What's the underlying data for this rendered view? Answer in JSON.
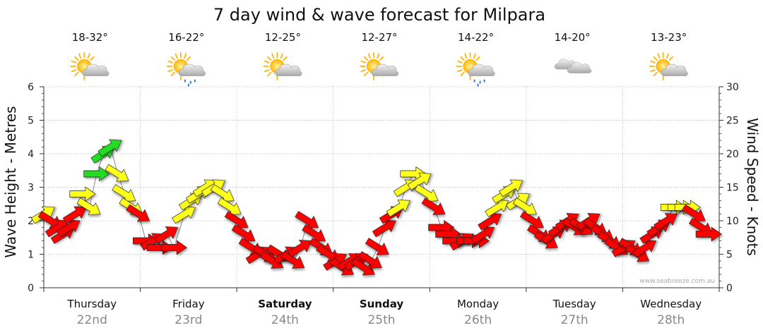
{
  "title": "7 day wind & wave forecast for Milpara",
  "credit": "www.seabreeze.com.au",
  "colors": {
    "red": "#ff0000",
    "yellow": "#ffff1a",
    "green": "#22dd22",
    "wave_line": "#555555"
  },
  "days": [
    {
      "name": "Thursday",
      "date": "22nd",
      "temp": "18-32°",
      "icon": "sun-cloud-icon",
      "bold": false
    },
    {
      "name": "Friday",
      "date": "23rd",
      "temp": "16-22°",
      "icon": "sun-cloud-rain-icon",
      "bold": false
    },
    {
      "name": "Saturday",
      "date": "24th",
      "temp": "12-25°",
      "icon": "sun-cloud-icon",
      "bold": true
    },
    {
      "name": "Sunday",
      "date": "25th",
      "temp": "12-27°",
      "icon": "sun-cloud-icon",
      "bold": true
    },
    {
      "name": "Monday",
      "date": "26th",
      "temp": "14-22°",
      "icon": "sun-cloud-rain-icon",
      "bold": false
    },
    {
      "name": "Tuesday",
      "date": "27th",
      "temp": "14-20°",
      "icon": "cloud-icon",
      "bold": false
    },
    {
      "name": "Wednesday",
      "date": "28th",
      "temp": "13-23°",
      "icon": "sun-cloud-icon",
      "bold": false
    }
  ],
  "chart_data": {
    "type": "line",
    "title": "7 day wind & wave forecast for Milpara",
    "y_left": {
      "label": "Wave Height - Metres",
      "min": 0,
      "max": 6,
      "ticks": [
        0,
        1,
        2,
        3,
        4,
        5,
        6
      ]
    },
    "y_right": {
      "label": "Wind Speed - Knots",
      "min": 0,
      "max": 30,
      "ticks": [
        0,
        5,
        10,
        15,
        20,
        25,
        30
      ]
    },
    "x": {
      "days": 7,
      "categories": [
        "Thursday 22nd",
        "Friday 23rd",
        "Saturday 24th",
        "Sunday 25th",
        "Monday 26th",
        "Tuesday 27th",
        "Wednesday 28th"
      ]
    },
    "grid": true,
    "wind_arrows": [
      {
        "t": 0.0,
        "speed": 11,
        "dir": "NE",
        "color": "yellow"
      },
      {
        "t": 0.1,
        "speed": 10,
        "dir": "SE",
        "color": "red"
      },
      {
        "t": 0.2,
        "speed": 9,
        "dir": "NE",
        "color": "red"
      },
      {
        "t": 0.28,
        "speed": 8,
        "dir": "NE",
        "color": "red"
      },
      {
        "t": 0.36,
        "speed": 9,
        "dir": "NE",
        "color": "red"
      },
      {
        "t": 0.45,
        "speed": 11,
        "dir": "NE",
        "color": "red"
      },
      {
        "t": 0.55,
        "speed": 14,
        "dir": "E",
        "color": "yellow"
      },
      {
        "t": 0.65,
        "speed": 12,
        "dir": "SE",
        "color": "yellow"
      },
      {
        "t": 0.75,
        "speed": 17,
        "dir": "E",
        "color": "green"
      },
      {
        "t": 0.85,
        "speed": 20,
        "dir": "NE",
        "color": "green"
      },
      {
        "t": 0.95,
        "speed": 21,
        "dir": "NE",
        "color": "green"
      },
      {
        "t": 1.05,
        "speed": 17,
        "dir": "SE",
        "color": "yellow"
      },
      {
        "t": 1.15,
        "speed": 14,
        "dir": "SE",
        "color": "yellow"
      },
      {
        "t": 1.25,
        "speed": 12,
        "dir": "SE",
        "color": "yellow"
      },
      {
        "t": 1.35,
        "speed": 11,
        "dir": "SE",
        "color": "red"
      },
      {
        "t": 1.45,
        "speed": 7,
        "dir": "E",
        "color": "red"
      },
      {
        "t": 1.55,
        "speed": 7,
        "dir": "NE",
        "color": "red"
      },
      {
        "t": 1.65,
        "speed": 6,
        "dir": "E",
        "color": "red"
      },
      {
        "t": 1.75,
        "speed": 8,
        "dir": "NE",
        "color": "red"
      },
      {
        "t": 1.85,
        "speed": 6,
        "dir": "E",
        "color": "red"
      },
      {
        "t": 2.0,
        "speed": 11,
        "dir": "NE",
        "color": "yellow"
      },
      {
        "t": 2.1,
        "speed": 13,
        "dir": "NE",
        "color": "yellow"
      },
      {
        "t": 2.2,
        "speed": 14,
        "dir": "NE",
        "color": "yellow"
      },
      {
        "t": 2.3,
        "speed": 15,
        "dir": "NE",
        "color": "yellow"
      },
      {
        "t": 2.42,
        "speed": 15,
        "dir": "NE",
        "color": "yellow"
      },
      {
        "t": 2.55,
        "speed": 14,
        "dir": "SE",
        "color": "yellow"
      },
      {
        "t": 2.65,
        "speed": 12,
        "dir": "SE",
        "color": "yellow"
      },
      {
        "t": 2.75,
        "speed": 10,
        "dir": "SE",
        "color": "red"
      },
      {
        "t": 2.85,
        "speed": 8,
        "dir": "SE",
        "color": "red"
      },
      {
        "t": 2.95,
        "speed": 6,
        "dir": "SE",
        "color": "red"
      },
      {
        "t": 3.05,
        "speed": 5,
        "dir": "NE",
        "color": "red"
      },
      {
        "t": 3.15,
        "speed": 5,
        "dir": "SE",
        "color": "red"
      },
      {
        "t": 3.25,
        "speed": 4,
        "dir": "SE",
        "color": "red"
      },
      {
        "t": 3.35,
        "speed": 5,
        "dir": "SE",
        "color": "red"
      },
      {
        "t": 3.45,
        "speed": 5,
        "dir": "NE",
        "color": "red"
      },
      {
        "t": 3.55,
        "speed": 4,
        "dir": "SE",
        "color": "red"
      },
      {
        "t": 3.65,
        "speed": 6,
        "dir": "NE",
        "color": "red"
      },
      {
        "t": 3.75,
        "speed": 10,
        "dir": "SE",
        "color": "red"
      },
      {
        "t": 3.85,
        "speed": 8,
        "dir": "SE",
        "color": "red"
      },
      {
        "t": 3.95,
        "speed": 6,
        "dir": "SE",
        "color": "red"
      },
      {
        "t": 4.05,
        "speed": 5,
        "dir": "SE",
        "color": "red"
      },
      {
        "t": 4.15,
        "speed": 4,
        "dir": "NE",
        "color": "red"
      },
      {
        "t": 4.25,
        "speed": 3,
        "dir": "SE",
        "color": "red"
      },
      {
        "t": 4.35,
        "speed": 4,
        "dir": "NE",
        "color": "red"
      },
      {
        "t": 4.45,
        "speed": 4,
        "dir": "NE",
        "color": "red"
      },
      {
        "t": 4.55,
        "speed": 3,
        "dir": "SE",
        "color": "red"
      },
      {
        "t": 4.65,
        "speed": 4,
        "dir": "SE",
        "color": "red"
      },
      {
        "t": 4.75,
        "speed": 6,
        "dir": "SE",
        "color": "red"
      },
      {
        "t": 4.85,
        "speed": 9,
        "dir": "NE",
        "color": "red"
      },
      {
        "t": 4.95,
        "speed": 11,
        "dir": "NE",
        "color": "red"
      },
      {
        "t": 5.05,
        "speed": 12,
        "dir": "NE",
        "color": "yellow"
      },
      {
        "t": 5.15,
        "speed": 15,
        "dir": "NE",
        "color": "yellow"
      },
      {
        "t": 5.25,
        "speed": 17,
        "dir": "E",
        "color": "yellow"
      },
      {
        "t": 5.35,
        "speed": 16,
        "dir": "NE",
        "color": "yellow"
      },
      {
        "t": 5.45,
        "speed": 14,
        "dir": "SE",
        "color": "yellow"
      },
      {
        "t": 5.55,
        "speed": 12,
        "dir": "SE",
        "color": "red"
      },
      {
        "t": 5.65,
        "speed": 9,
        "dir": "E",
        "color": "red"
      },
      {
        "t": 5.75,
        "speed": 8,
        "dir": "E",
        "color": "red"
      },
      {
        "t": 5.85,
        "speed": 7,
        "dir": "E",
        "color": "red"
      },
      {
        "t": 5.95,
        "speed": 7,
        "dir": "NE",
        "color": "red"
      },
      {
        "t": 6.05,
        "speed": 7,
        "dir": "E",
        "color": "red"
      },
      {
        "t": 6.15,
        "speed": 7,
        "dir": "E",
        "color": "red"
      },
      {
        "t": 6.25,
        "speed": 8,
        "dir": "NE",
        "color": "red"
      },
      {
        "t": 6.35,
        "speed": 10,
        "dir": "NE",
        "color": "red"
      },
      {
        "t": 6.45,
        "speed": 12,
        "dir": "NE",
        "color": "yellow"
      },
      {
        "t": 6.55,
        "speed": 14,
        "dir": "NE",
        "color": "yellow"
      },
      {
        "t": 6.65,
        "speed": 15,
        "dir": "NE",
        "color": "yellow"
      },
      {
        "t": 6.75,
        "speed": 13,
        "dir": "NE",
        "color": "yellow"
      },
      {
        "t": 6.85,
        "speed": 12,
        "dir": "SE",
        "color": "yellow"
      },
      {
        "t": 6.95,
        "speed": 10,
        "dir": "SE",
        "color": "red"
      },
      {
        "t": 7.05,
        "speed": 8,
        "dir": "SE",
        "color": "red"
      },
      {
        "t": 7.15,
        "speed": 7,
        "dir": "SE",
        "color": "red"
      },
      {
        "t": 7.25,
        "speed": 8,
        "dir": "NE",
        "color": "red"
      },
      {
        "t": 7.35,
        "speed": 9,
        "dir": "NE",
        "color": "red"
      },
      {
        "t": 7.45,
        "speed": 10,
        "dir": "NE",
        "color": "red"
      },
      {
        "t": 7.55,
        "speed": 9,
        "dir": "SE",
        "color": "red"
      },
      {
        "t": 7.65,
        "speed": 9,
        "dir": "SE",
        "color": "red"
      },
      {
        "t": 7.75,
        "speed": 10,
        "dir": "NE",
        "color": "red"
      },
      {
        "t": 7.85,
        "speed": 9,
        "dir": "SE",
        "color": "red"
      },
      {
        "t": 7.95,
        "speed": 8,
        "dir": "SE",
        "color": "red"
      },
      {
        "t": 8.05,
        "speed": 7,
        "dir": "SE",
        "color": "red"
      },
      {
        "t": 8.15,
        "speed": 6,
        "dir": "SE",
        "color": "red"
      },
      {
        "t": 8.25,
        "speed": 6,
        "dir": "NE",
        "color": "red"
      },
      {
        "t": 8.35,
        "speed": 6,
        "dir": "SE",
        "color": "red"
      },
      {
        "t": 8.45,
        "speed": 5,
        "dir": "SE",
        "color": "red"
      },
      {
        "t": 8.55,
        "speed": 6,
        "dir": "NE",
        "color": "red"
      },
      {
        "t": 8.65,
        "speed": 8,
        "dir": "NE",
        "color": "red"
      },
      {
        "t": 8.75,
        "speed": 9,
        "dir": "NE",
        "color": "red"
      },
      {
        "t": 8.85,
        "speed": 10,
        "dir": "NE",
        "color": "red"
      },
      {
        "t": 8.95,
        "speed": 12,
        "dir": "E",
        "color": "yellow"
      },
      {
        "t": 9.05,
        "speed": 12,
        "dir": "E",
        "color": "yellow"
      },
      {
        "t": 9.15,
        "speed": 12,
        "dir": "E",
        "color": "yellow"
      },
      {
        "t": 9.25,
        "speed": 11,
        "dir": "SE",
        "color": "red"
      },
      {
        "t": 9.35,
        "speed": 9,
        "dir": "SE",
        "color": "red"
      },
      {
        "t": 9.45,
        "speed": 8,
        "dir": "E",
        "color": "red"
      }
    ]
  }
}
